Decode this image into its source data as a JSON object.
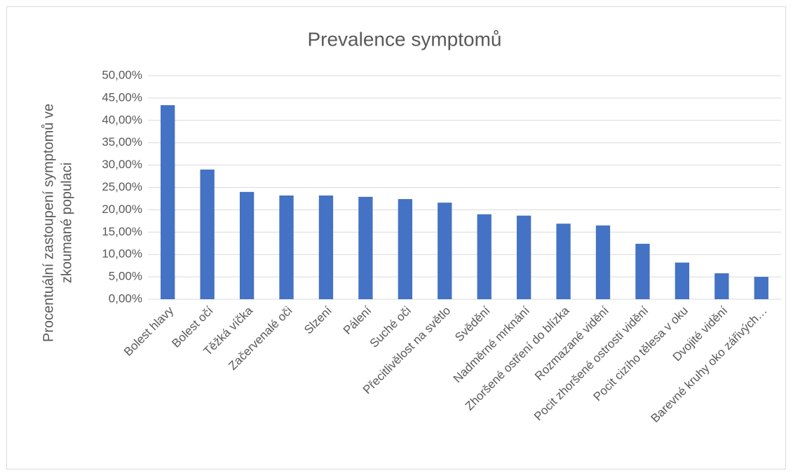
{
  "chart_data": {
    "type": "bar",
    "title": "Prevalence symptomů",
    "y_label": [
      "Procentuální zastoupení symptomů ve",
      "zkoumané populaci"
    ],
    "categories": [
      "Bolest hlavy",
      "Bolest očí",
      "Těžká víčka",
      "Začervenalé oči",
      "Slzení",
      "Pálení",
      "Suché oči",
      "Přecitlivělost na světlo",
      "Svědění",
      "Nadměrné mrknání",
      "Zhoršené ostření do blízka",
      "Rozmazané vidění",
      "Pocit zhoršené ostrosti vidění",
      "Pocit cizího tělesa v oku",
      "Dvojité vidění",
      "Barevné kruhy oko zářivých…"
    ],
    "values": [
      43.4,
      29.0,
      24.0,
      23.2,
      23.2,
      22.9,
      22.4,
      21.6,
      19.0,
      18.7,
      16.9,
      16.5,
      12.4,
      8.2,
      5.8,
      5.0
    ],
    "color": "#4472c4",
    "ylim": [
      0,
      50
    ],
    "yticks": [
      {
        "value": 0,
        "label": "0,00%"
      },
      {
        "value": 5,
        "label": "5,00%"
      },
      {
        "value": 10,
        "label": "10,00%"
      },
      {
        "value": 15,
        "label": "15,00%"
      },
      {
        "value": 20,
        "label": "20,00%"
      },
      {
        "value": 25,
        "label": "25,00%"
      },
      {
        "value": 30,
        "label": "30,00%"
      },
      {
        "value": 35,
        "label": "35,00%"
      },
      {
        "value": 40,
        "label": "40,00%"
      },
      {
        "value": 45,
        "label": "45,00%"
      },
      {
        "value": 50,
        "label": "50,00%"
      }
    ],
    "grid": true
  }
}
